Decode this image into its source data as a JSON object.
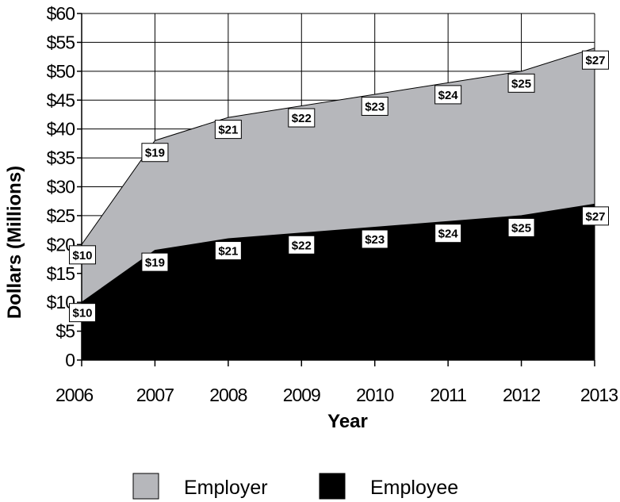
{
  "chart_data": {
    "type": "area",
    "stacked": true,
    "title": "",
    "xlabel": "Year",
    "ylabel": "Dollars (Millions)",
    "categories": [
      "2006",
      "2007",
      "2008",
      "2009",
      "2010",
      "2011",
      "2012",
      "2013"
    ],
    "ylim": [
      0,
      60
    ],
    "yticks": [
      0,
      5,
      10,
      15,
      20,
      25,
      30,
      35,
      40,
      45,
      50,
      55,
      60
    ],
    "ytick_labels": [
      "0",
      "$5",
      "$10",
      "$15",
      "$20",
      "$25",
      "$30",
      "$35",
      "$40",
      "$45",
      "$50",
      "$55",
      "$60"
    ],
    "grid": true,
    "legend_position": "bottom",
    "series": [
      {
        "name": "Employee",
        "color": "#000000",
        "values": [
          10,
          19,
          21,
          22,
          23,
          24,
          25,
          27
        ],
        "labels": [
          "$10",
          "$19",
          "$21",
          "$22",
          "$23",
          "$24",
          "$25",
          "$27"
        ]
      },
      {
        "name": "Employer",
        "color": "#b6b7bb",
        "values": [
          10,
          19,
          21,
          22,
          23,
          24,
          25,
          27
        ],
        "labels": [
          "$10",
          "$19",
          "$21",
          "$22",
          "$23",
          "$24",
          "$25",
          "$27"
        ]
      }
    ]
  }
}
